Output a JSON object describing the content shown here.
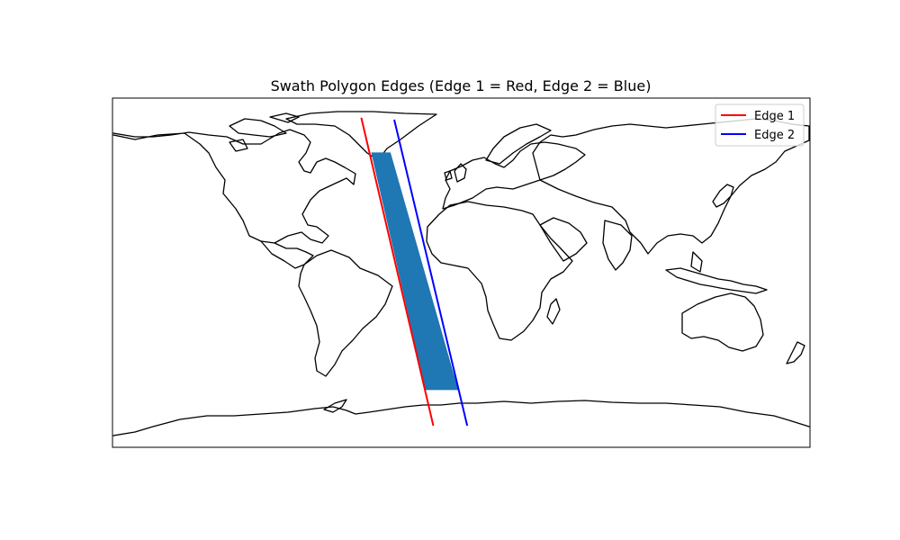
{
  "chart_data": {
    "type": "map",
    "title": "Swath Polygon Edges (Edge 1 = Red, Edge 2 = Blue)",
    "projection": "PlateCarree",
    "xlim": [
      -180,
      180
    ],
    "ylim": [
      -90,
      90
    ],
    "grid": false,
    "legend_position": "top-right",
    "series": [
      {
        "name": "Edge 1",
        "color": "#ff0000",
        "points": [
          [
            -51.5,
            79.5
          ],
          [
            -14.5,
            -78.5
          ]
        ]
      },
      {
        "name": "Edge 2",
        "color": "#0000ff",
        "points": [
          [
            -34.5,
            78.5
          ],
          [
            3.0,
            -78.5
          ]
        ]
      }
    ],
    "swath": {
      "color": "#1f77b4",
      "polygon": [
        [
          -46.5,
          62.0
        ],
        [
          -36.5,
          62.0
        ],
        [
          -1.5,
          -60.5
        ],
        [
          -18.5,
          -60.5
        ]
      ]
    }
  }
}
